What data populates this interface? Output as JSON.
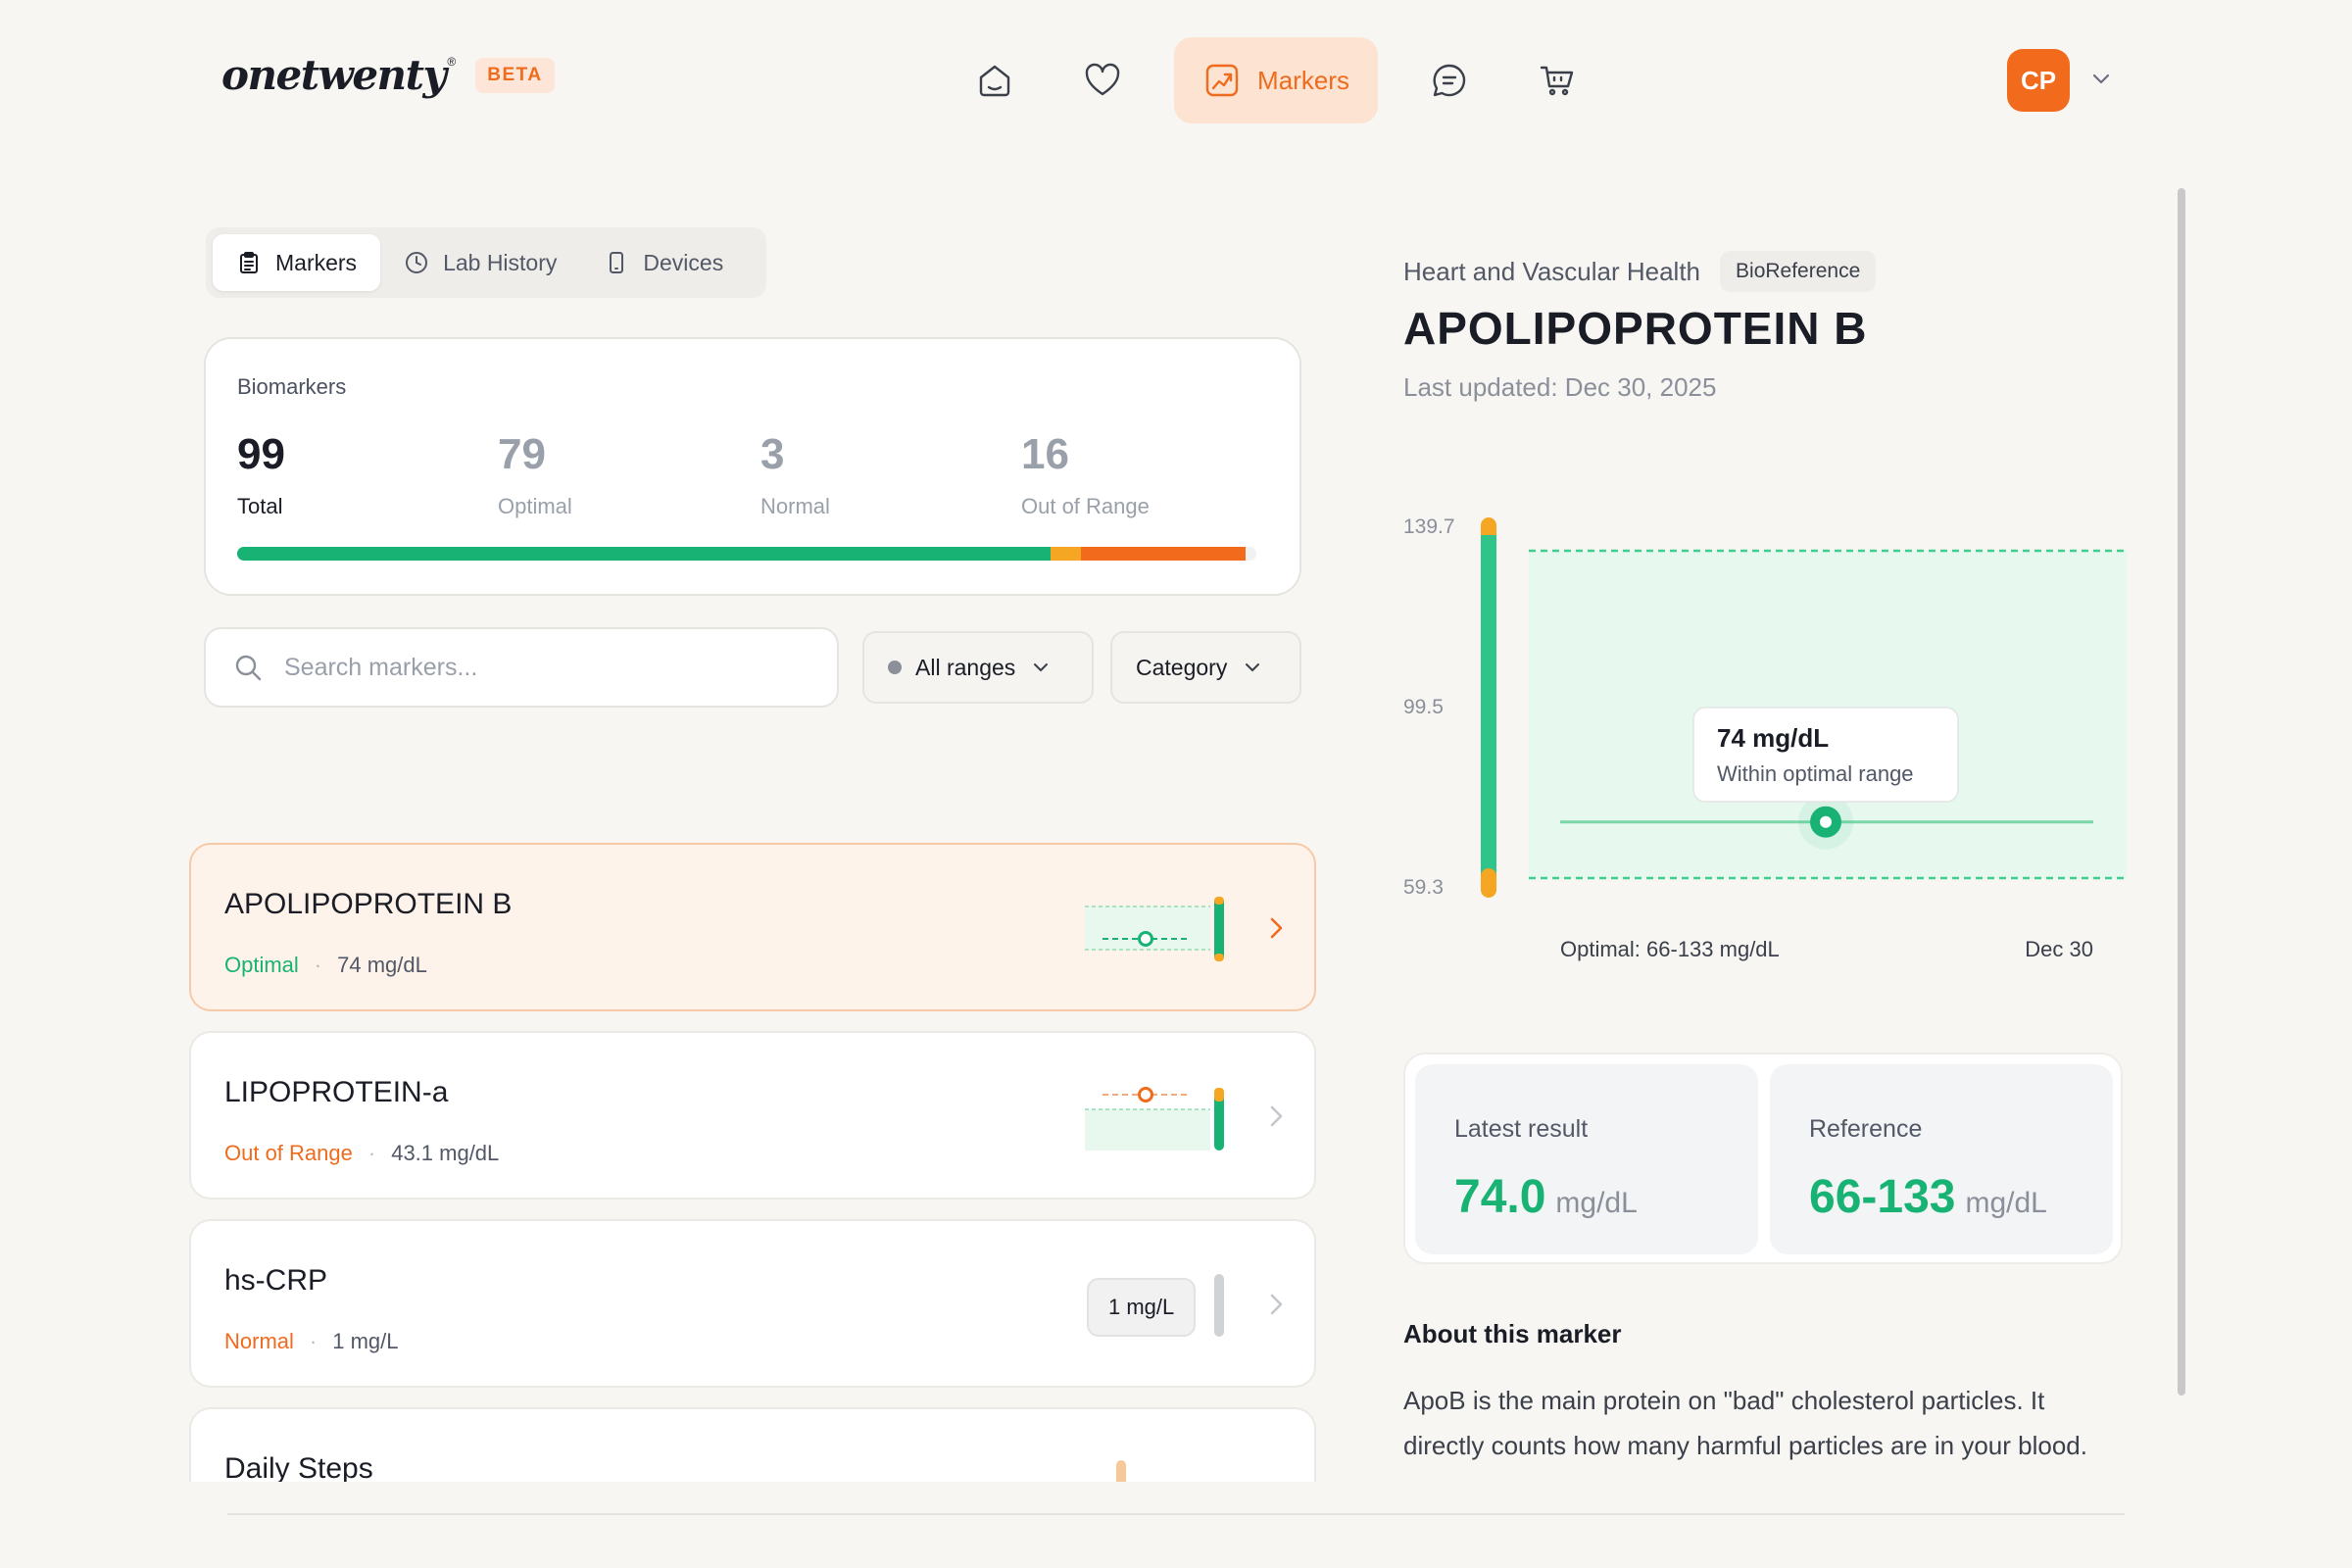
{
  "brand": {
    "logo_text": "onetwenty",
    "logo_mark": "®",
    "badge": "BETA"
  },
  "nav": {
    "items": [
      {
        "icon": "home-icon"
      },
      {
        "icon": "heart-icon"
      },
      {
        "icon": "markers-chart-icon",
        "label": "Markers",
        "active": true
      },
      {
        "icon": "chat-icon"
      },
      {
        "icon": "cart-icon"
      }
    ],
    "user_initials": "CP"
  },
  "tabs": [
    {
      "label": "Markers",
      "icon": "clipboard-icon",
      "active": true
    },
    {
      "label": "Lab History",
      "icon": "clock-icon"
    },
    {
      "label": "Devices",
      "icon": "phone-icon"
    }
  ],
  "summary": {
    "title": "Biomarkers",
    "stats": [
      {
        "value": "99",
        "label": "Total"
      },
      {
        "value": "79",
        "label": "Optimal"
      },
      {
        "value": "3",
        "label": "Normal"
      },
      {
        "value": "16",
        "label": "Out of Range"
      }
    ],
    "bar_counts": {
      "optimal": 79,
      "normal": 3,
      "out_of_range": 16,
      "total": 99
    }
  },
  "filters": {
    "search_placeholder": "Search markers...",
    "range_dropdown": "All ranges",
    "category_dropdown": "Category"
  },
  "markers": [
    {
      "name": "APOLIPOPROTEIN B",
      "status": "Optimal",
      "value": "74 mg/dL",
      "selected": true
    },
    {
      "name": "LIPOPROTEIN-a",
      "status": "Out of Range",
      "value": "43.1 mg/dL"
    },
    {
      "name": "hs-CRP",
      "status": "Normal",
      "value": "1 mg/L",
      "pill": "1 mg/L"
    },
    {
      "name": "Daily Steps"
    }
  ],
  "detail": {
    "category": "Heart and Vascular Health",
    "source": "BioReference",
    "title": "APOLIPOPROTEIN B",
    "updated": "Last updated: Dec 30, 2025",
    "tooltip_value": "74 mg/dL",
    "tooltip_note": "Within optimal range",
    "optimal_caption": "Optimal: 66-133 mg/dL",
    "date_label": "Dec 30",
    "latest_label": "Latest result",
    "latest_value": "74.0",
    "latest_unit": "mg/dL",
    "reference_label": "Reference",
    "reference_value": "66-133",
    "reference_unit": "mg/dL",
    "about_title": "About this marker",
    "about_text": "ApoB is the main protein on \"bad\" cholesterol particles. It directly counts how many harmful particles are in your blood."
  },
  "chart_data": {
    "type": "scatter",
    "y_ticks": [
      "139.7",
      "99.5",
      "59.3"
    ],
    "ylim": [
      59.3,
      139.7
    ],
    "optimal_range": [
      66,
      133
    ],
    "points": [
      {
        "x": "Dec 30",
        "y": 74
      }
    ]
  },
  "colors": {
    "accent": "#f26b1d",
    "optimal": "#18b374",
    "normal": "#f5a623",
    "out_of_range": "#f26b1d"
  }
}
